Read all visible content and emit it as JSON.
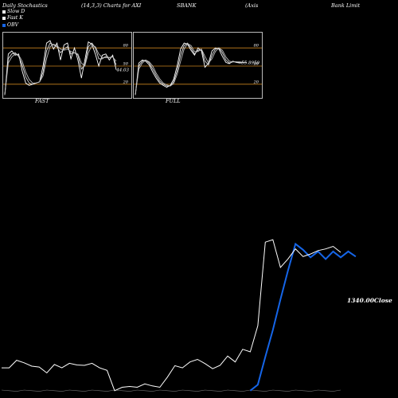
{
  "title_segments": [
    "Daily Stochastics",
    "(14,3,3) Charts for AXI",
    "SBANK",
    "(Axis",
    "Bank Limit"
  ],
  "legend": [
    {
      "label": "Slow D",
      "color": "#ffffff"
    },
    {
      "label": "Fast K",
      "color": "#ffffff"
    },
    {
      "label": "OBV",
      "color": "#1565e8"
    }
  ],
  "colors": {
    "background": "#000000",
    "level_line": "#c8821e",
    "price_line": "#ffffff",
    "obv_line": "#1565e8",
    "panel_border": "#bbbbbb"
  },
  "chart_data": [
    {
      "type": "line",
      "name": "FAST",
      "title": "FAST",
      "ylim": [
        0,
        100
      ],
      "levels": [
        80,
        50,
        20
      ],
      "level_labels": [
        "80",
        "50",
        "20"
      ],
      "last_value_label": "44.03",
      "last_value": 44.03,
      "series": [
        {
          "values": [
            2,
            70,
            75,
            68,
            70,
            42,
            22,
            18,
            20,
            22,
            24,
            50,
            88,
            92,
            78,
            88,
            60,
            85,
            88,
            62,
            80,
            60,
            30,
            60,
            90,
            86,
            70,
            50,
            68,
            70,
            60,
            68,
            44
          ]
        },
        {
          "values": [
            2,
            62,
            70,
            72,
            66,
            52,
            32,
            22,
            20,
            22,
            24,
            40,
            75,
            88,
            85,
            82,
            72,
            78,
            82,
            70,
            72,
            68,
            45,
            52,
            82,
            88,
            80,
            62,
            62,
            66,
            64,
            66,
            52
          ]
        },
        {
          "values": [
            2,
            55,
            65,
            70,
            68,
            58,
            40,
            28,
            22,
            22,
            24,
            34,
            62,
            82,
            86,
            84,
            78,
            76,
            78,
            74,
            72,
            70,
            55,
            50,
            72,
            84,
            82,
            70,
            64,
            64,
            64,
            65,
            58
          ]
        }
      ]
    },
    {
      "type": "line",
      "name": "FULL",
      "title": "FULL",
      "ylim": [
        0,
        100
      ],
      "levels": [
        80,
        50,
        20
      ],
      "level_labels": [
        "80",
        "50",
        "20"
      ],
      "last_value_label": "55.8950",
      "last_value": 55.9,
      "series": [
        {
          "values": [
            2,
            55,
            60,
            58,
            52,
            40,
            30,
            22,
            18,
            15,
            18,
            28,
            50,
            78,
            88,
            86,
            76,
            68,
            80,
            75,
            48,
            55,
            75,
            80,
            78,
            66,
            56,
            54,
            58,
            56,
            55,
            56,
            56
          ]
        },
        {
          "values": [
            2,
            50,
            58,
            60,
            55,
            45,
            34,
            25,
            20,
            17,
            17,
            24,
            42,
            68,
            84,
            88,
            80,
            70,
            76,
            78,
            58,
            52,
            68,
            78,
            80,
            72,
            60,
            55,
            57,
            57,
            56,
            56,
            56
          ]
        },
        {
          "values": [
            2,
            45,
            55,
            60,
            57,
            50,
            38,
            29,
            22,
            19,
            17,
            21,
            36,
            58,
            78,
            87,
            84,
            74,
            74,
            78,
            66,
            55,
            62,
            74,
            80,
            76,
            65,
            58,
            57,
            57,
            57,
            56,
            56
          ]
        }
      ]
    },
    {
      "type": "line",
      "name": "Price",
      "last_value_label": "1340.00Close",
      "last_value": 1340,
      "ylim": [
        500,
        1420
      ],
      "series": [
        {
          "name": "Close",
          "values": [
            655,
            655,
            700,
            685,
            665,
            660,
            625,
            675,
            655,
            682,
            672,
            670,
            682,
            655,
            640,
            520,
            540,
            545,
            540,
            560,
            548,
            540,
            600,
            668,
            655,
            690,
            705,
            680,
            650,
            670,
            725,
            690,
            765,
            750,
            905,
            1400,
            1415,
            1250,
            1300,
            1360,
            1315,
            1330,
            1350,
            1360,
            1375,
            1340
          ]
        },
        {
          "name": "OBV",
          "values": null,
          "visible_from_index": 33,
          "values_tail": [
            520,
            555,
            720,
            880,
            1060,
            1230,
            1390,
            1355,
            1310,
            1345,
            1300,
            1345,
            1310,
            1345,
            1315
          ]
        }
      ]
    }
  ]
}
